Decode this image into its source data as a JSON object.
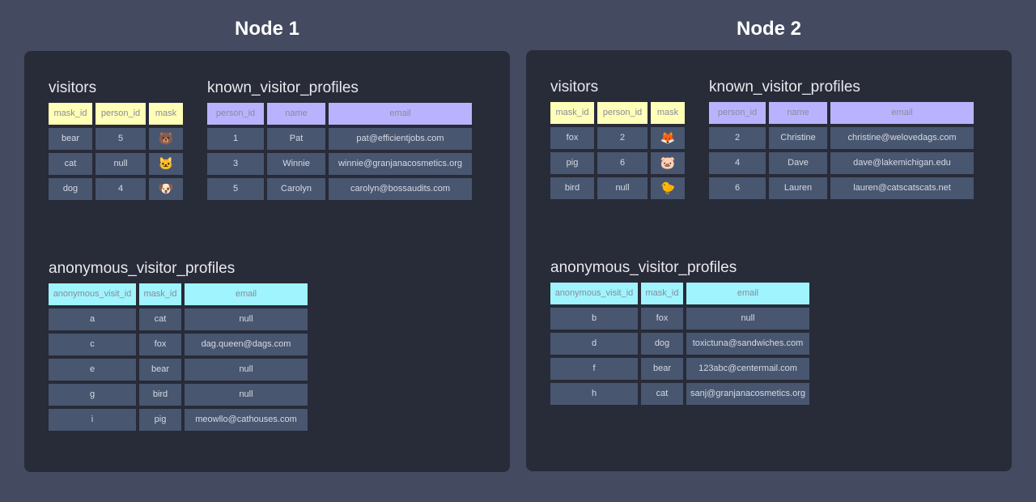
{
  "nodes": [
    {
      "title": "Node 1",
      "visitors": {
        "title": "visitors",
        "columns": [
          "mask_id",
          "person_id",
          "mask"
        ],
        "rows": [
          [
            "bear",
            "5",
            "🐻"
          ],
          [
            "cat",
            "null",
            "🐱"
          ],
          [
            "dog",
            "4",
            "🐶"
          ]
        ]
      },
      "known_visitor_profiles": {
        "title": "known_visitor_profiles",
        "columns": [
          "person_id",
          "name",
          "email"
        ],
        "rows": [
          [
            "1",
            "Pat",
            "pat@efficientjobs.com"
          ],
          [
            "3",
            "Winnie",
            "winnie@granjanacosmetics.org"
          ],
          [
            "5",
            "Carolyn",
            "carolyn@bossaudits.com"
          ]
        ]
      },
      "anonymous_visitor_profiles": {
        "title": "anonymous_visitor_profiles",
        "columns": [
          "anonymous_visit_id",
          "mask_id",
          "email"
        ],
        "rows": [
          [
            "a",
            "cat",
            "null"
          ],
          [
            "c",
            "fox",
            "dag.queen@dags.com"
          ],
          [
            "e",
            "bear",
            "null"
          ],
          [
            "g",
            "bird",
            "null"
          ],
          [
            "i",
            "pig",
            "meowllo@cathouses.com"
          ]
        ]
      }
    },
    {
      "title": "Node 2",
      "visitors": {
        "title": "visitors",
        "columns": [
          "mask_id",
          "person_id",
          "mask"
        ],
        "rows": [
          [
            "fox",
            "2",
            "🦊"
          ],
          [
            "pig",
            "6",
            "🐷"
          ],
          [
            "bird",
            "null",
            "🐤"
          ]
        ]
      },
      "known_visitor_profiles": {
        "title": "known_visitor_profiles",
        "columns": [
          "person_id",
          "name",
          "email"
        ],
        "rows": [
          [
            "2",
            "Christine",
            "christine@welovedags.com"
          ],
          [
            "4",
            "Dave",
            "dave@lakemichigan.edu"
          ],
          [
            "6",
            "Lauren",
            "lauren@catscatscats.net"
          ]
        ]
      },
      "anonymous_visitor_profiles": {
        "title": "anonymous_visitor_profiles",
        "columns": [
          "anonymous_visit_id",
          "mask_id",
          "email"
        ],
        "rows": [
          [
            "b",
            "fox",
            "null"
          ],
          [
            "d",
            "dog",
            "toxictuna@sandwiches.com"
          ],
          [
            "f",
            "bear",
            "123abc@centermail.com"
          ],
          [
            "h",
            "cat",
            "sanj@granjanacosmetics.org"
          ]
        ]
      }
    }
  ],
  "colors": {
    "visitors_header": "#ffffb8",
    "known_header": "#b9b3ff",
    "anonymous_header": "#9ff4fd",
    "cell": "#485670",
    "panel": "#282b38",
    "background": "#444a60"
  }
}
